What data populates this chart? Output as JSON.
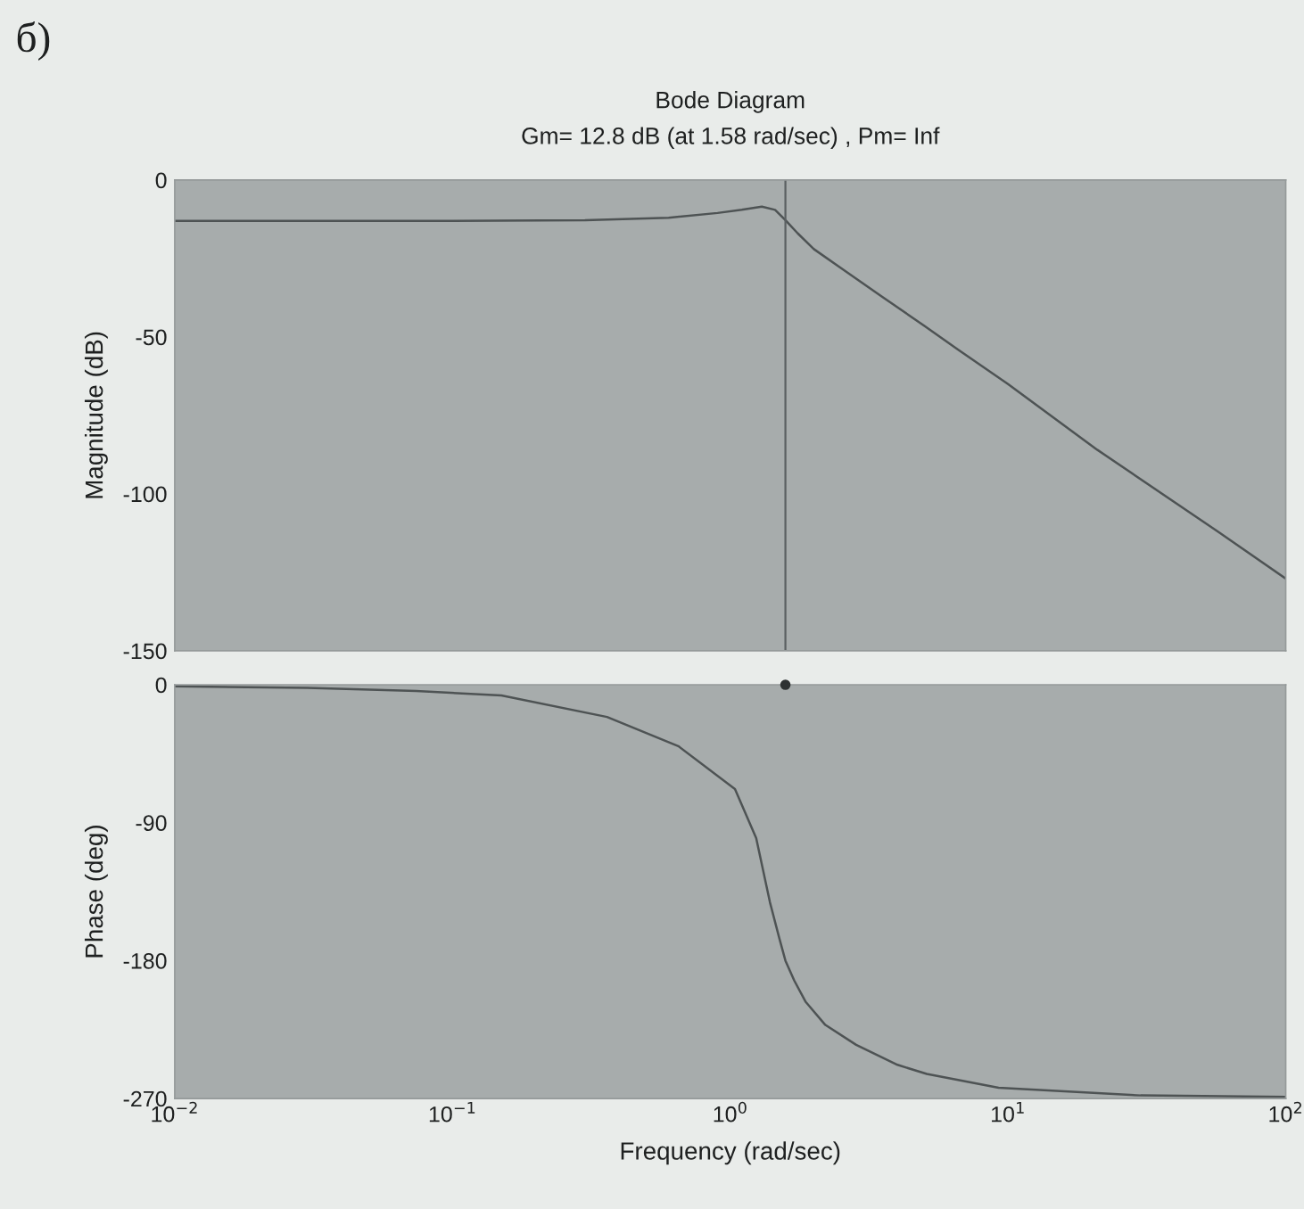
{
  "chart_data": [
    {
      "type": "line",
      "title": "Bode Diagram",
      "subtitle": "Gm= 12.8 dB (at 1.58 rad/sec) , Pm= Inf",
      "ylabel": "Magnitude (dB)",
      "annotations": [
        "б)"
      ],
      "log": "x",
      "xlim": [
        0.01,
        100
      ],
      "ylim": [
        -150,
        0
      ],
      "yticks": [
        -150,
        -100,
        -50,
        0
      ],
      "tick_labels": "y",
      "ref_lines": [
        {
          "axis": "x",
          "value": 1.58,
          "color": "#5b6062"
        }
      ],
      "series": [
        {
          "color": "#4e5354",
          "x": [
            0.01,
            0.03,
            0.1,
            0.3,
            0.6,
            0.9,
            1.1,
            1.3,
            1.45,
            1.58,
            1.75,
            2.0,
            2.5,
            3.5,
            5,
            6.6,
            10,
            21,
            57,
            100
          ],
          "values": [
            -13,
            -13,
            -13,
            -12.8,
            -12,
            -10.5,
            -9.5,
            -8.5,
            -9.5,
            -12.8,
            -17,
            -22,
            -28,
            -37,
            -46.5,
            -54,
            -65,
            -86,
            -112,
            -127
          ]
        }
      ]
    },
    {
      "type": "line",
      "xlabel": "Frequency (rad/sec)",
      "ylabel": "Phase (deg)",
      "log": "x",
      "xlim": [
        0.01,
        100
      ],
      "xticks": [
        {
          "value": 0.01,
          "label": "10$^{−2}$"
        },
        {
          "value": 0.1,
          "label": "10$^{−1}$"
        },
        {
          "value": 1,
          "label": "10$^{0}$"
        },
        {
          "value": 10,
          "label": "10$^{1}$"
        },
        {
          "value": 100,
          "label": "10$^{2}$"
        }
      ],
      "ylim": [
        -270,
        0
      ],
      "yticks": [
        -270,
        -180,
        -90,
        0
      ],
      "series": [
        {
          "color": "#4e5354",
          "x": [
            0.01,
            0.03,
            0.074,
            0.15,
            0.36,
            0.65,
            1.04,
            1.24,
            1.39,
            1.5,
            1.58,
            1.7,
            1.87,
            2.2,
            2.84,
            4,
            5.1,
            9.25,
            30,
            100
          ],
          "values": [
            -1,
            -2,
            -4,
            -7,
            -21,
            -40,
            -68,
            -100,
            -142,
            -165,
            -180,
            -193,
            -207,
            -222,
            -235,
            -248,
            -254,
            -263,
            -268,
            -269
          ]
        },
        {
          "type": "scatter",
          "marker": "circle",
          "color": "#2e3233",
          "x": [
            1.58
          ],
          "values": [
            0
          ]
        }
      ]
    }
  ]
}
